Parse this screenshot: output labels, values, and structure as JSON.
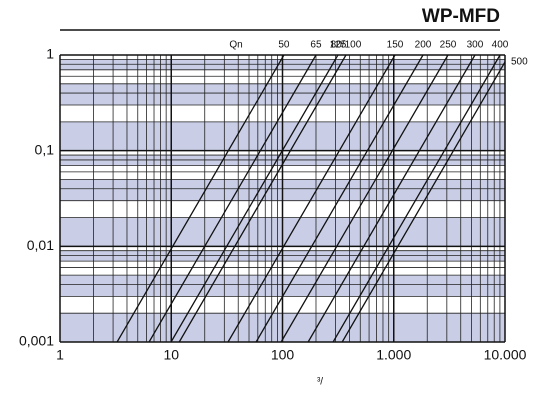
{
  "chart_data": {
    "type": "line",
    "title": "WP-MFD",
    "legend_title": "Qn",
    "x_label": "³/",
    "xlog": true,
    "ylog": true,
    "xlim": [
      1,
      10000
    ],
    "ylim": [
      0.001,
      1
    ],
    "xticks": [
      1,
      10,
      100,
      {
        "value": 1000,
        "label": "1.000"
      },
      {
        "value": 10000,
        "label": "10.000"
      }
    ],
    "yticks": [
      {
        "value": 0.001,
        "label": "0,001"
      },
      {
        "value": 0.01,
        "label": "0,01"
      },
      {
        "value": 0.1,
        "label": "0,1"
      },
      1
    ],
    "band_color": "#c9cee6",
    "series": [
      {
        "name": "50",
        "color": "#111111",
        "x": [
          3.26,
          103
        ],
        "values": [
          0.001,
          1
        ]
      },
      {
        "name": "65",
        "color": "#111111",
        "x": [
          6.32,
          200
        ],
        "values": [
          0.001,
          1
        ]
      },
      {
        "name": "125",
        "color": "#111111",
        "x": [
          9.96,
          315
        ],
        "values": [
          0.001,
          1
        ]
      },
      {
        "name": "80/100",
        "color": "#111111",
        "x": [
          11.8,
          372
        ],
        "values": [
          0.001,
          1
        ]
      },
      {
        "name": "150",
        "color": "#111111",
        "x": [
          32.4,
          1026
        ],
        "values": [
          0.001,
          1
        ]
      },
      {
        "name": "200",
        "color": "#111111",
        "x": [
          57.9,
          1832
        ],
        "values": [
          0.001,
          1
        ]
      },
      {
        "name": "250",
        "color": "#111111",
        "x": [
          97.2,
          3073
        ],
        "values": [
          0.001,
          1
        ]
      },
      {
        "name": "300",
        "color": "#111111",
        "x": [
          170,
          5370
        ],
        "values": [
          0.001,
          1
        ]
      },
      {
        "name": "400",
        "color": "#111111",
        "x": [
          285,
          9020
        ],
        "values": [
          0.001,
          1
        ]
      },
      {
        "name": "500",
        "color": "#111111",
        "x": [
          344,
          10000
        ],
        "values": [
          0.001,
          0.845
        ]
      }
    ]
  }
}
